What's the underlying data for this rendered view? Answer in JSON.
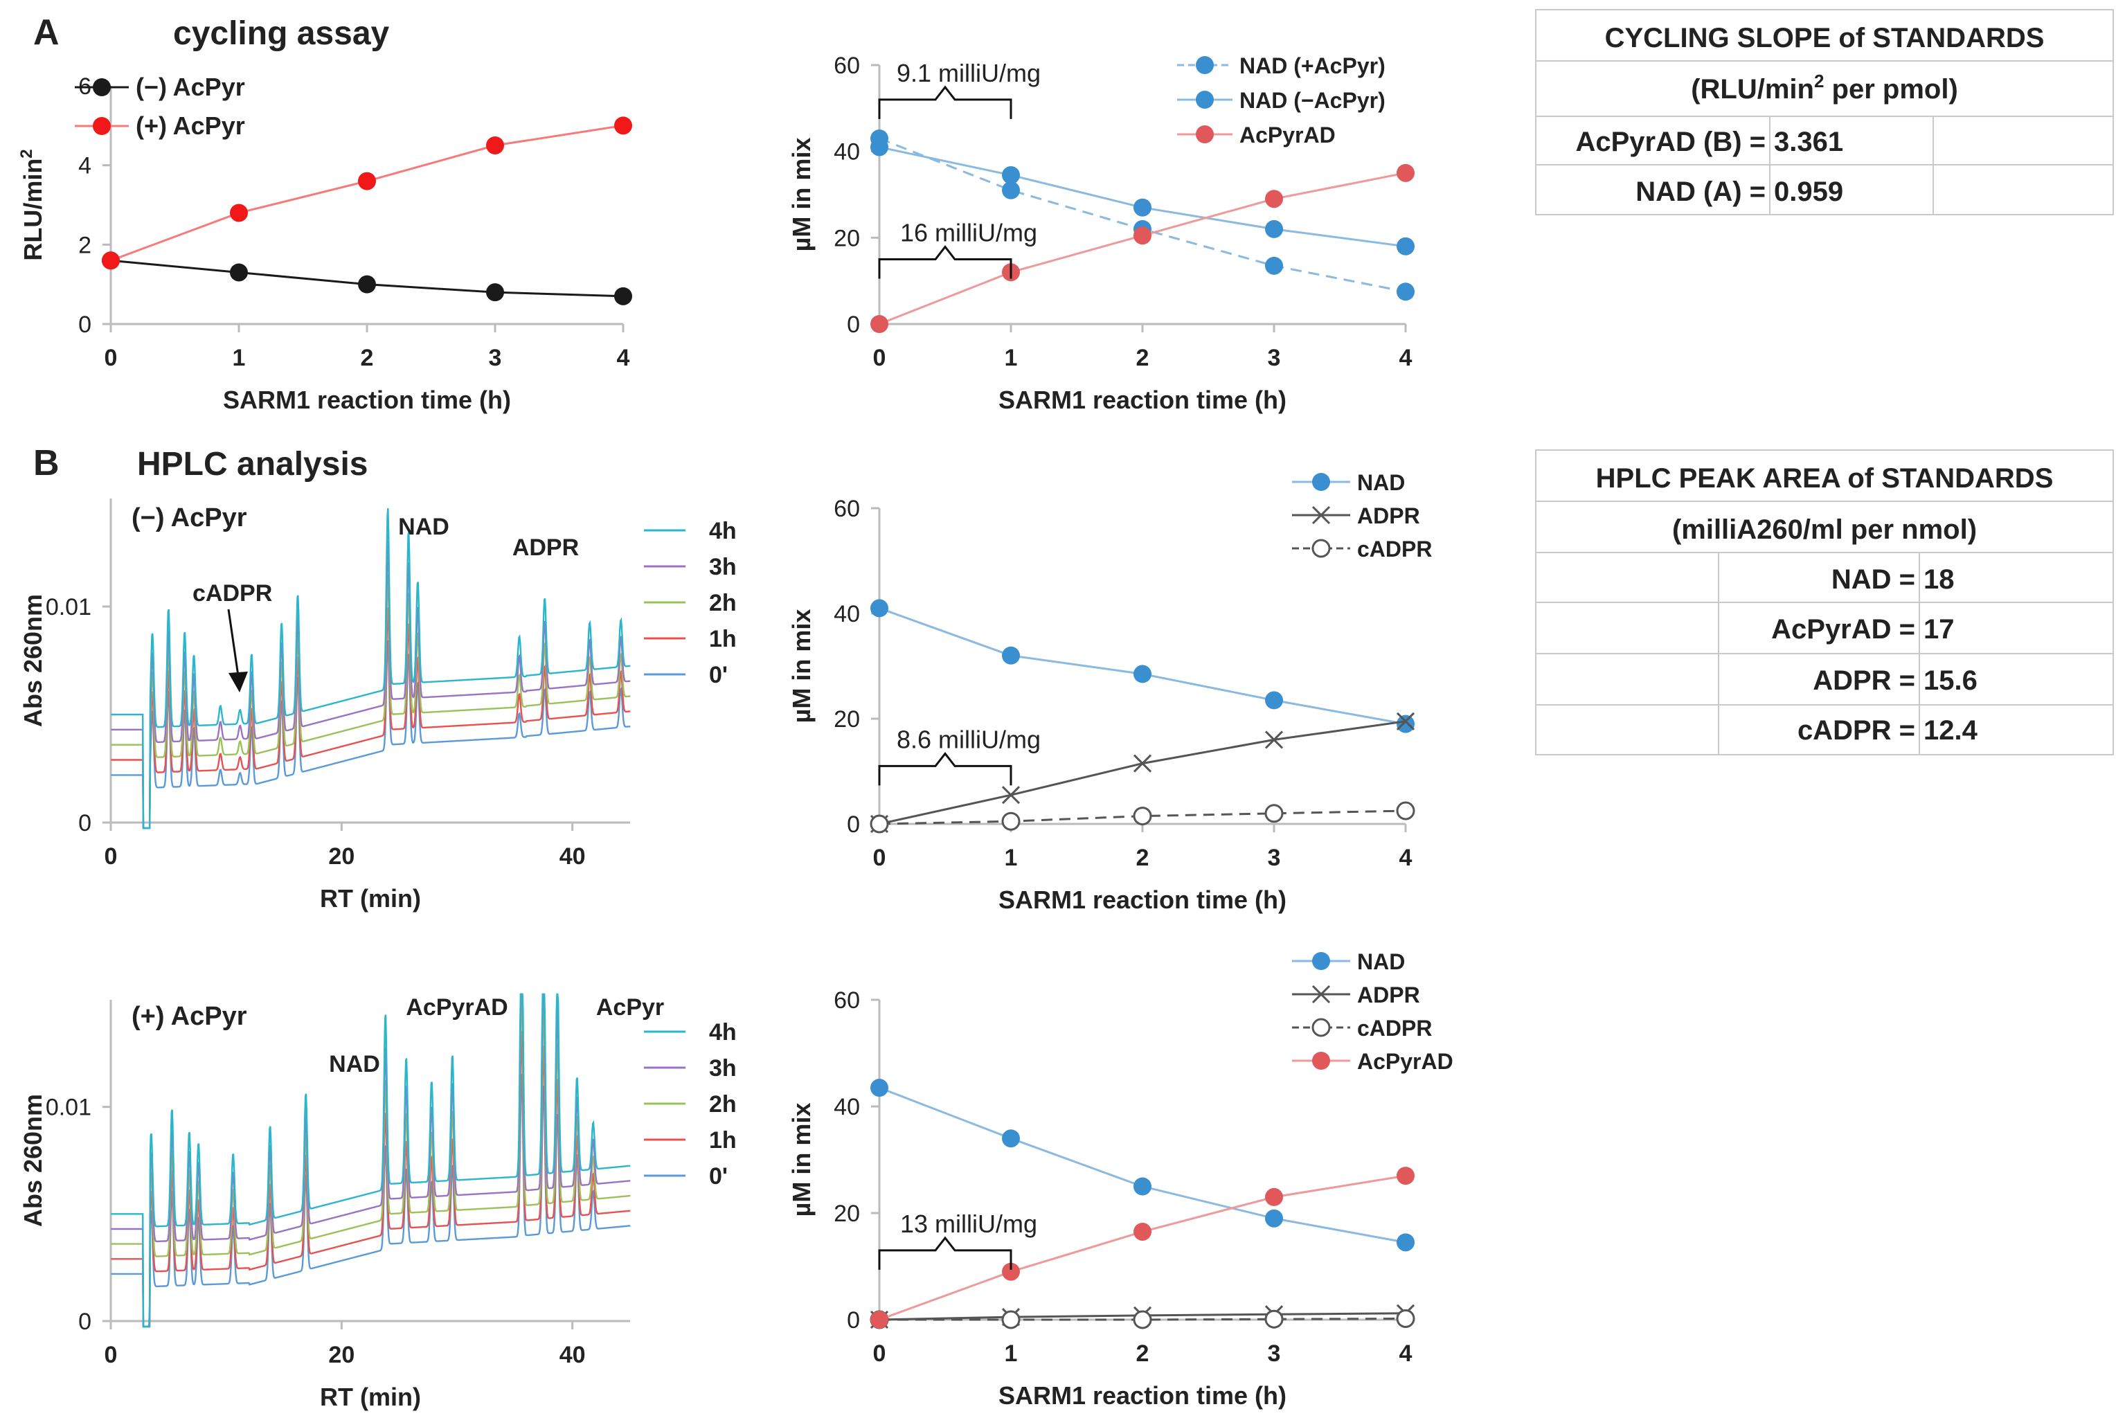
{
  "colors": {
    "blue": "#3a8fd0",
    "blue_light": "#8ab9e2",
    "red": "#e0585a",
    "red_bright": "#f01818",
    "black": "#1a1a1a",
    "gray": "#555555",
    "cyan": "#2ab6cc",
    "purple": "#9a72c6",
    "green": "#9ac25a",
    "chrom_red": "#e9514f",
    "chrom_blue": "#5a9ad8"
  },
  "panel_labels": {
    "a": "A",
    "b": "B"
  },
  "panel_titles": {
    "a": "cycling assay",
    "b": "HPLC analysis"
  },
  "tables": {
    "cycling": {
      "title": "CYCLING SLOPE of STANDARDS",
      "unit_pre": "(RLU/min",
      "unit_sup": "2",
      "unit_post": " per pmol)",
      "rows": [
        {
          "label": "AcPyrAD (B) =",
          "value": "3.361"
        },
        {
          "label": "NAD (A) =",
          "value": "0.959"
        }
      ]
    },
    "hplc": {
      "title": "HPLC PEAK AREA of STANDARDS",
      "unit": "(milliA260/ml per nmol)",
      "rows": [
        {
          "label": "NAD =",
          "value": "18"
        },
        {
          "label": "AcPyrAD =",
          "value": "17"
        },
        {
          "label": "ADPR =",
          "value": "15.6"
        },
        {
          "label": "cADPR =",
          "value": "12.4"
        }
      ]
    }
  },
  "chart_data": [
    {
      "id": "a1",
      "type": "line",
      "xlabel": "SARM1 reaction time (h)",
      "ylabel": "RLU/min",
      "ylabel_sup": "2",
      "x": [
        0,
        1,
        2,
        3,
        4
      ],
      "xlim": [
        0,
        4
      ],
      "ylim": [
        0,
        6
      ],
      "xticks": [
        "0",
        "1",
        "2",
        "3",
        "4"
      ],
      "yticks": [
        "0",
        "2",
        "4",
        "6"
      ],
      "series": [
        {
          "name": "(−) AcPyr",
          "values": [
            1.6,
            1.3,
            1.0,
            0.8,
            0.7
          ],
          "color": "#1a1a1a",
          "marker": "dot"
        },
        {
          "name": "(+) AcPyr",
          "values": [
            1.6,
            2.8,
            3.6,
            4.5,
            5.0
          ],
          "color": "#f01818",
          "marker": "dot"
        }
      ]
    },
    {
      "id": "a2",
      "type": "line",
      "xlabel": "SARM1 reaction time (h)",
      "ylabel": "µM in mix",
      "x": [
        0,
        1,
        2,
        3,
        4
      ],
      "xlim": [
        0,
        4
      ],
      "ylim": [
        0,
        60
      ],
      "xticks": [
        "0",
        "1",
        "2",
        "3",
        "4"
      ],
      "yticks": [
        "0",
        "20",
        "40",
        "60"
      ],
      "series": [
        {
          "name": "NAD (+AcPyr)",
          "values": [
            43,
            31,
            22,
            13.5,
            7.5
          ],
          "color": "#3a8fd0",
          "marker": "dot",
          "dash": true
        },
        {
          "name": "NAD (−AcPyr)",
          "values": [
            41,
            34.5,
            27,
            22,
            18
          ],
          "color": "#3a8fd0",
          "marker": "dot"
        },
        {
          "name": "AcPyrAD",
          "values": [
            0,
            12,
            20.5,
            29,
            35
          ],
          "color": "#e0585a",
          "marker": "dot"
        }
      ],
      "annotations": [
        {
          "text": "9.1 milliU/mg",
          "x0": 0,
          "x1": 1,
          "y": 52
        },
        {
          "text": "16 milliU/mg",
          "x0": 0,
          "x1": 1,
          "y": 15
        }
      ]
    },
    {
      "id": "b1",
      "type": "line",
      "title": "(−) AcPyr",
      "xlabel": "RT (min)",
      "ylabel": "Abs 260nm",
      "xlim": [
        0,
        45
      ],
      "ylim": [
        0,
        0.015
      ],
      "xticks": [
        "0",
        "20",
        "40"
      ],
      "yticks": [
        "0",
        "0.01"
      ],
      "series": [
        {
          "name": "0'",
          "color": "#5a9ad8",
          "offset": 0
        },
        {
          "name": "1h",
          "color": "#e9514f",
          "offset": 0.0007
        },
        {
          "name": "2h",
          "color": "#9ac25a",
          "offset": 0.0014
        },
        {
          "name": "3h",
          "color": "#9a72c6",
          "offset": 0.0021
        },
        {
          "name": "4h",
          "color": "#2ab6cc",
          "offset": 0.0028
        }
      ],
      "annotations": [
        "cADPR",
        "NAD",
        "ADPR"
      ]
    },
    {
      "id": "b2",
      "type": "line",
      "xlabel": "SARM1 reaction time (h)",
      "ylabel": "µM in mix",
      "x": [
        0,
        1,
        2,
        3,
        4
      ],
      "xlim": [
        0,
        4
      ],
      "ylim": [
        0,
        60
      ],
      "xticks": [
        "0",
        "1",
        "2",
        "3",
        "4"
      ],
      "yticks": [
        "0",
        "20",
        "40",
        "60"
      ],
      "series": [
        {
          "name": "NAD",
          "values": [
            41,
            32,
            28.5,
            23.5,
            19
          ],
          "color": "#3a8fd0",
          "marker": "dot"
        },
        {
          "name": "ADPR",
          "values": [
            0,
            5.5,
            11.5,
            16,
            19.5
          ],
          "color": "#555555",
          "marker": "cross"
        },
        {
          "name": "cADPR",
          "values": [
            0,
            0.5,
            1.5,
            2,
            2.5
          ],
          "color": "#555555",
          "marker": "circle",
          "dash": true
        }
      ],
      "annotations": [
        {
          "text": "8.6 milliU/mg",
          "x0": 0,
          "x1": 1,
          "y": 11
        }
      ]
    },
    {
      "id": "b3",
      "type": "line",
      "title": "(+) AcPyr",
      "xlabel": "RT (min)",
      "ylabel": "Abs 260nm",
      "xlim": [
        0,
        45
      ],
      "ylim": [
        0,
        0.015
      ],
      "xticks": [
        "0",
        "20",
        "40"
      ],
      "yticks": [
        "0",
        "0.01"
      ],
      "series": [
        {
          "name": "0'",
          "color": "#5a9ad8",
          "offset": 0
        },
        {
          "name": "1h",
          "color": "#e9514f",
          "offset": 0.0007
        },
        {
          "name": "2h",
          "color": "#9ac25a",
          "offset": 0.0014
        },
        {
          "name": "3h",
          "color": "#9a72c6",
          "offset": 0.0021
        },
        {
          "name": "4h",
          "color": "#2ab6cc",
          "offset": 0.0028
        }
      ],
      "annotations": [
        "NAD",
        "AcPyrAD",
        "AcPyr"
      ]
    },
    {
      "id": "b4",
      "type": "line",
      "xlabel": "SARM1 reaction time (h)",
      "ylabel": "µM in mix",
      "x": [
        0,
        1,
        2,
        3,
        4
      ],
      "xlim": [
        0,
        4
      ],
      "ylim": [
        0,
        60
      ],
      "xticks": [
        "0",
        "1",
        "2",
        "3",
        "4"
      ],
      "yticks": [
        "0",
        "20",
        "40",
        "60"
      ],
      "series": [
        {
          "name": "NAD",
          "values": [
            43.5,
            34,
            25,
            19,
            14.5
          ],
          "color": "#3a8fd0",
          "marker": "dot"
        },
        {
          "name": "ADPR",
          "values": [
            0,
            0.5,
            0.8,
            1,
            1.2
          ],
          "color": "#555555",
          "marker": "cross"
        },
        {
          "name": "cADPR",
          "values": [
            0,
            0,
            0,
            0.1,
            0.2
          ],
          "color": "#555555",
          "marker": "circle",
          "dash": true
        },
        {
          "name": "AcPyrAD",
          "values": [
            0,
            9,
            16.5,
            23,
            27
          ],
          "color": "#e0585a",
          "marker": "dot"
        }
      ],
      "annotations": [
        {
          "text": "13 milliU/mg",
          "x0": 0,
          "x1": 1,
          "y": 13
        }
      ]
    }
  ]
}
